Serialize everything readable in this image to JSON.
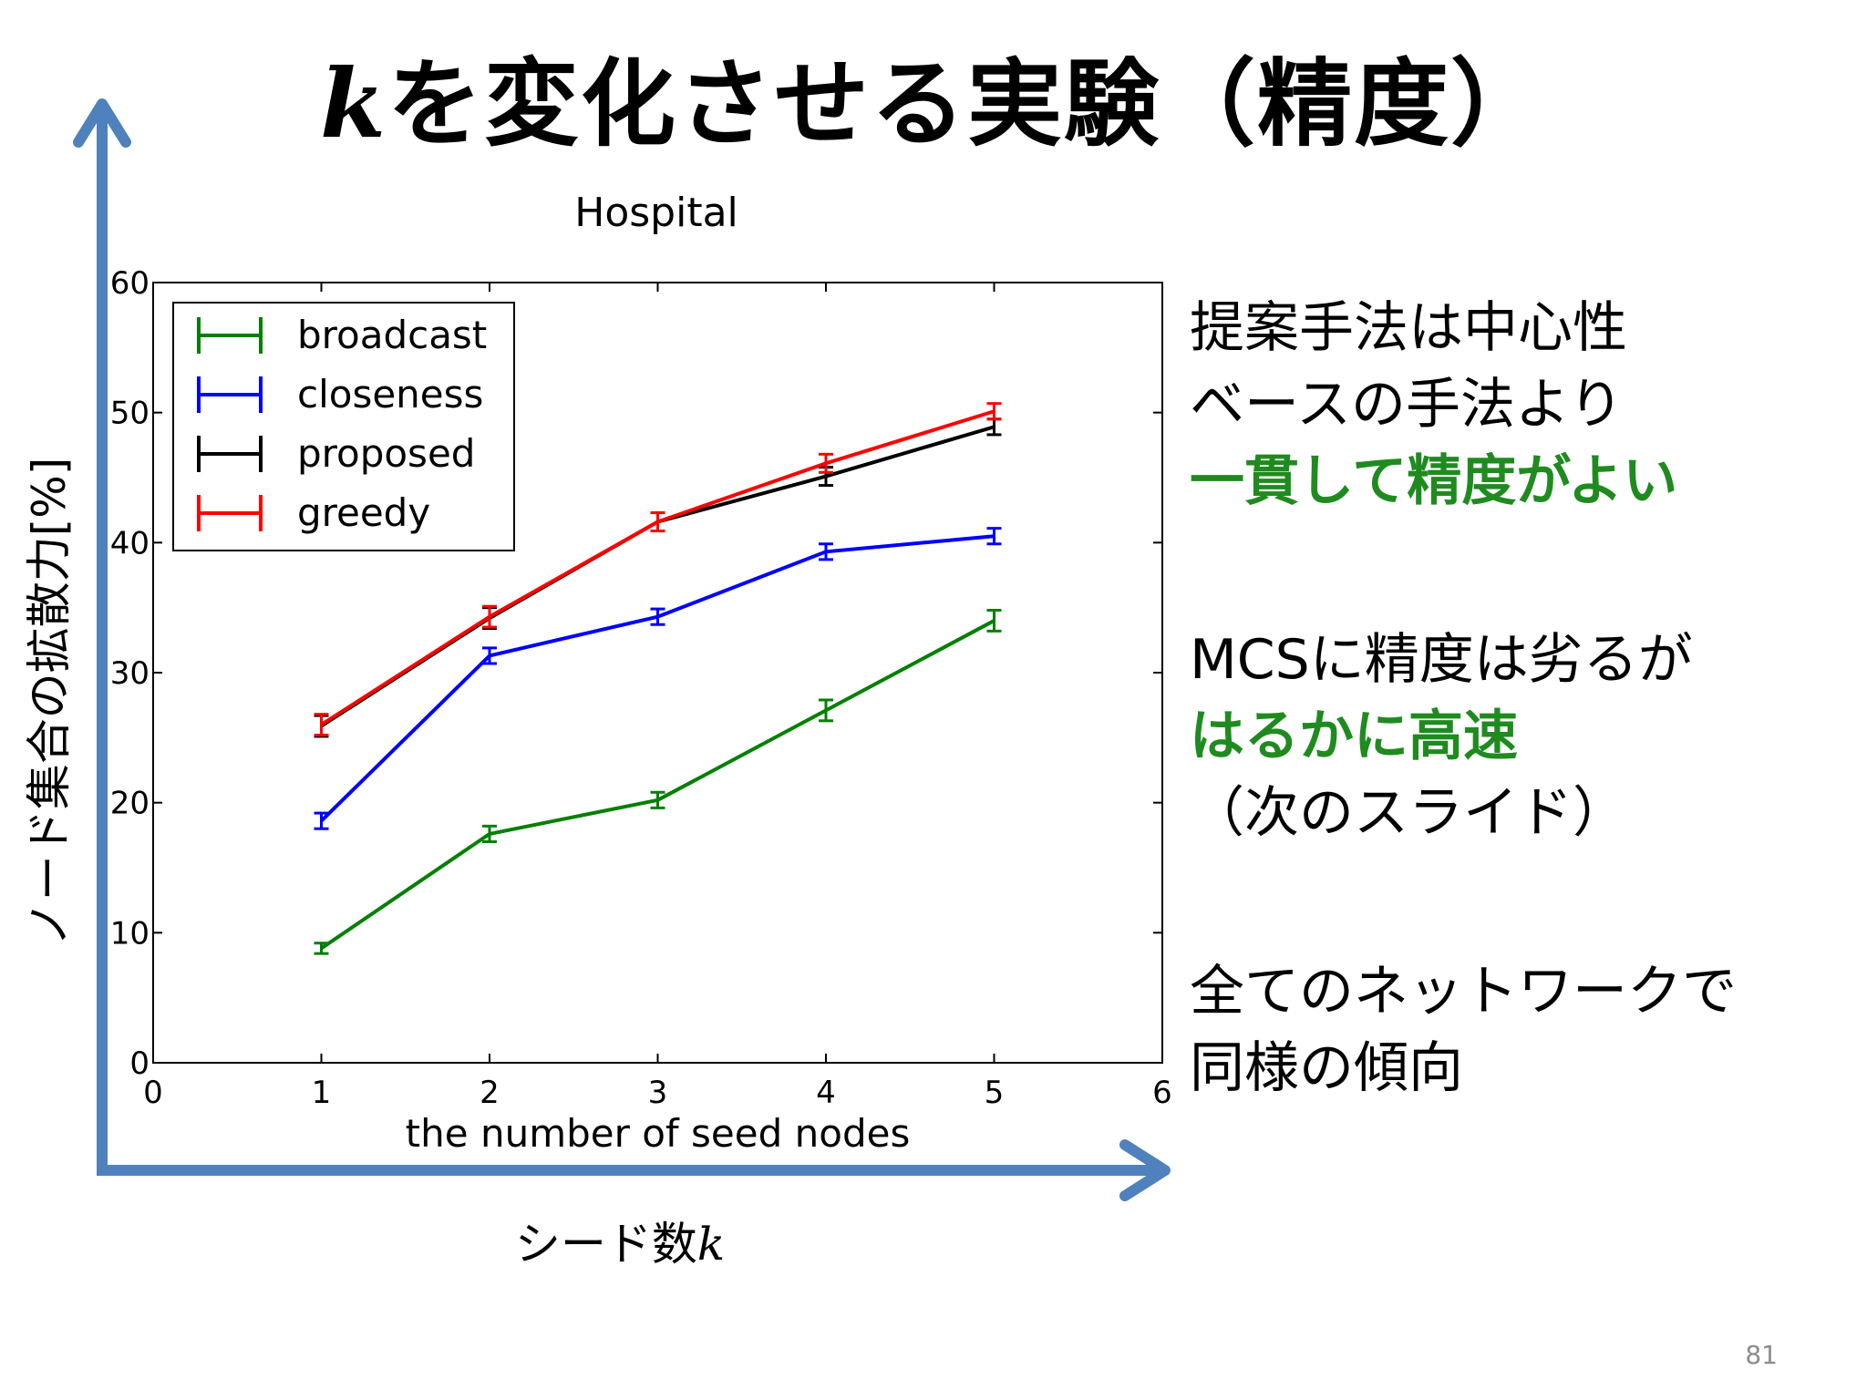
{
  "slide": {
    "title_k": "k",
    "title_rest": "を変化させる実験（精度）",
    "page_number": "81"
  },
  "axes_overlay": {
    "y_label": "ノード集合の拡散力[%]",
    "x_label": "シード数",
    "x_label_var": "k",
    "arrow_color": "#4f81bd"
  },
  "notes": [
    {
      "text": "提案手法は中心性",
      "style": "normal"
    },
    {
      "text": "ベースの手法より",
      "style": "normal"
    },
    {
      "text": "一貫して精度がよい",
      "style": "green"
    },
    {
      "text": "MCSに精度は劣るが",
      "style": "normal"
    },
    {
      "text": "はるかに高速",
      "style": "green"
    },
    {
      "text": "（次のスライド）",
      "style": "normal"
    },
    {
      "text": "全てのネットワークで",
      "style": "normal"
    },
    {
      "text": "同様の傾向",
      "style": "normal"
    }
  ],
  "chart_data": {
    "type": "line",
    "title": "Hospital",
    "xlabel": "the number of seed nodes",
    "ylabel": "",
    "xlim": [
      0,
      6
    ],
    "ylim": [
      0,
      60
    ],
    "xticks": [
      0,
      1,
      2,
      3,
      4,
      5,
      6
    ],
    "yticks": [
      0,
      10,
      20,
      30,
      40,
      50,
      60
    ],
    "grid": false,
    "legend_position": "top-left",
    "x": [
      1,
      2,
      3,
      4,
      5
    ],
    "series": [
      {
        "name": "broadcast",
        "color": "#008000",
        "values": [
          8.8,
          17.6,
          20.2,
          27.1,
          34.0
        ],
        "errors": [
          0.4,
          0.6,
          0.6,
          0.8,
          0.8
        ]
      },
      {
        "name": "closeness",
        "color": "#0000ff",
        "values": [
          18.6,
          31.3,
          34.3,
          39.3,
          40.5
        ],
        "errors": [
          0.6,
          0.6,
          0.6,
          0.6,
          0.6
        ]
      },
      {
        "name": "proposed",
        "color": "#000000",
        "values": [
          25.9,
          34.2,
          41.6,
          45.1,
          48.9
        ],
        "errors": [
          0.8,
          0.8,
          0.7,
          0.7,
          0.6
        ]
      },
      {
        "name": "greedy",
        "color": "#ff0000",
        "values": [
          26.0,
          34.3,
          41.6,
          46.1,
          50.1
        ],
        "errors": [
          0.8,
          0.8,
          0.7,
          0.7,
          0.6
        ]
      }
    ]
  }
}
